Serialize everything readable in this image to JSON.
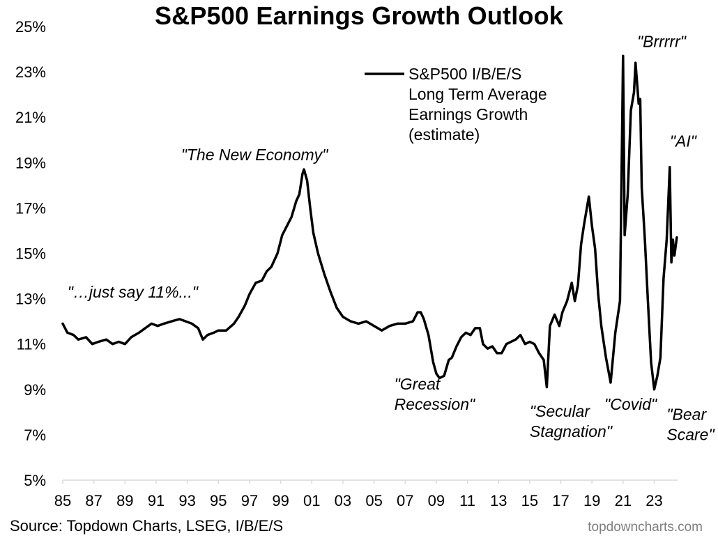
{
  "chart_data": {
    "type": "line",
    "title": "S&P500 Earnings Growth Outlook",
    "xlabel": "",
    "ylabel": "",
    "ylim": [
      5,
      25
    ],
    "xlim": [
      1985,
      2024.5
    ],
    "y_ticks": [
      5,
      7,
      9,
      11,
      13,
      15,
      17,
      19,
      21,
      23,
      25
    ],
    "y_tick_labels": [
      "5%",
      "7%",
      "9%",
      "11%",
      "13%",
      "15%",
      "17%",
      "19%",
      "21%",
      "23%",
      "25%"
    ],
    "x_ticks": [
      1985,
      1987,
      1989,
      1991,
      1993,
      1995,
      1997,
      1999,
      2001,
      2003,
      2005,
      2007,
      2009,
      2011,
      2013,
      2015,
      2017,
      2019,
      2021,
      2023
    ],
    "x_tick_labels": [
      "85",
      "87",
      "89",
      "91",
      "93",
      "95",
      "97",
      "99",
      "01",
      "03",
      "05",
      "07",
      "09",
      "11",
      "13",
      "15",
      "17",
      "19",
      "21",
      "23"
    ],
    "grid": false,
    "legend_position": "top-center",
    "series": [
      {
        "name": "S&P500 I/B/E/S Long Term Average Earnings Growth (estimate)",
        "color": "#000000",
        "x": [
          1985.0,
          1985.3,
          1985.7,
          1986.0,
          1986.5,
          1986.9,
          1987.3,
          1987.8,
          1988.2,
          1988.6,
          1989.0,
          1989.4,
          1989.9,
          1990.3,
          1990.7,
          1991.1,
          1991.5,
          1992.0,
          1992.5,
          1992.9,
          1993.3,
          1993.7,
          1994.0,
          1994.3,
          1994.7,
          1995.0,
          1995.5,
          1996.0,
          1996.3,
          1996.7,
          1997.0,
          1997.4,
          1997.8,
          1998.1,
          1998.4,
          1998.8,
          1999.1,
          1999.4,
          1999.7,
          2000.0,
          2000.2,
          2000.4,
          2000.5,
          2000.7,
          2000.9,
          2001.1,
          2001.4,
          2001.8,
          2002.2,
          2002.6,
          2003.0,
          2003.5,
          2004.0,
          2004.5,
          2005.0,
          2005.5,
          2006.0,
          2006.5,
          2007.0,
          2007.5,
          2007.8,
          2008.0,
          2008.2,
          2008.5,
          2008.8,
          2009.0,
          2009.2,
          2009.5,
          2009.8,
          2010.0,
          2010.3,
          2010.6,
          2010.9,
          2011.2,
          2011.5,
          2011.8,
          2012.0,
          2012.3,
          2012.6,
          2012.9,
          2013.2,
          2013.5,
          2013.8,
          2014.1,
          2014.4,
          2014.7,
          2015.0,
          2015.3,
          2015.6,
          2015.9,
          2016.1,
          2016.3,
          2016.6,
          2016.9,
          2017.1,
          2017.4,
          2017.7,
          2017.9,
          2018.1,
          2018.3,
          2018.5,
          2018.8,
          2019.0,
          2019.2,
          2019.4,
          2019.6,
          2019.9,
          2020.2,
          2020.5,
          2020.8,
          2021.0,
          2021.1,
          2021.3,
          2021.5,
          2021.7,
          2021.8,
          2022.0,
          2022.1,
          2022.2,
          2022.4,
          2022.6,
          2022.8,
          2023.0,
          2023.2,
          2023.4,
          2023.6,
          2023.8,
          2024.0,
          2024.1,
          2024.2,
          2024.3,
          2024.45
        ],
        "values": [
          11.9,
          11.5,
          11.4,
          11.2,
          11.3,
          11.0,
          11.1,
          11.2,
          11.0,
          11.1,
          11.0,
          11.3,
          11.5,
          11.7,
          11.9,
          11.8,
          11.9,
          12.0,
          12.1,
          12.0,
          11.9,
          11.7,
          11.2,
          11.4,
          11.5,
          11.6,
          11.6,
          11.9,
          12.2,
          12.7,
          13.2,
          13.7,
          13.8,
          14.2,
          14.4,
          15.0,
          15.8,
          16.2,
          16.6,
          17.3,
          17.6,
          18.5,
          18.7,
          18.2,
          17.0,
          15.9,
          15.0,
          14.1,
          13.3,
          12.6,
          12.2,
          12.0,
          11.9,
          12.0,
          11.8,
          11.6,
          11.8,
          11.9,
          11.9,
          12.0,
          12.4,
          12.4,
          12.1,
          11.4,
          10.2,
          9.7,
          9.5,
          9.6,
          10.3,
          10.4,
          10.9,
          11.3,
          11.5,
          11.4,
          11.7,
          11.7,
          11.0,
          10.8,
          10.9,
          10.6,
          10.6,
          11.0,
          11.1,
          11.2,
          11.4,
          11.0,
          11.1,
          11.0,
          10.6,
          10.3,
          9.1,
          11.8,
          12.3,
          11.8,
          12.4,
          12.9,
          13.7,
          12.9,
          13.6,
          15.4,
          16.3,
          17.5,
          16.2,
          15.2,
          13.2,
          11.8,
          10.4,
          9.3,
          11.5,
          12.9,
          23.7,
          15.8,
          17.6,
          21.3,
          22.1,
          23.4,
          21.6,
          21.8,
          17.9,
          15.6,
          12.8,
          10.2,
          9.0,
          9.6,
          10.4,
          13.9,
          15.6,
          18.8,
          14.6,
          15.6,
          14.9,
          15.7
        ]
      }
    ],
    "annotations": [
      {
        "lines": [
          "\"…just say 11%...\""
        ],
        "x": 1985.3,
        "y": 13.05
      },
      {
        "lines": [
          "\"The New Economy\""
        ],
        "x": 1992.6,
        "y": 19.1
      },
      {
        "lines": [
          "\"Great",
          "Recession\""
        ],
        "x": 2006.3,
        "y": 9.0
      },
      {
        "lines": [
          "\"Secular",
          "Stagnation\""
        ],
        "x": 2015.0,
        "y": 7.8
      },
      {
        "lines": [
          "\"Covid\""
        ],
        "x": 2019.8,
        "y": 8.1
      },
      {
        "lines": [
          "\"Brrrrr\""
        ],
        "x": 2021.9,
        "y": 24.1
      },
      {
        "lines": [
          "\"AI\""
        ],
        "x": 2024.0,
        "y": 19.7
      },
      {
        "lines": [
          "\"Bear",
          "Scare\""
        ],
        "x": 2023.8,
        "y": 7.65
      }
    ]
  },
  "legend": {
    "label_lines": [
      "S&P500 I/B/E/S",
      "Long Term Average",
      "Earnings Growth",
      "(estimate)"
    ]
  },
  "footer": {
    "source": "Source: Topdown Charts, LSEG, I/B/E/S",
    "brand": "topdowncharts.com"
  }
}
